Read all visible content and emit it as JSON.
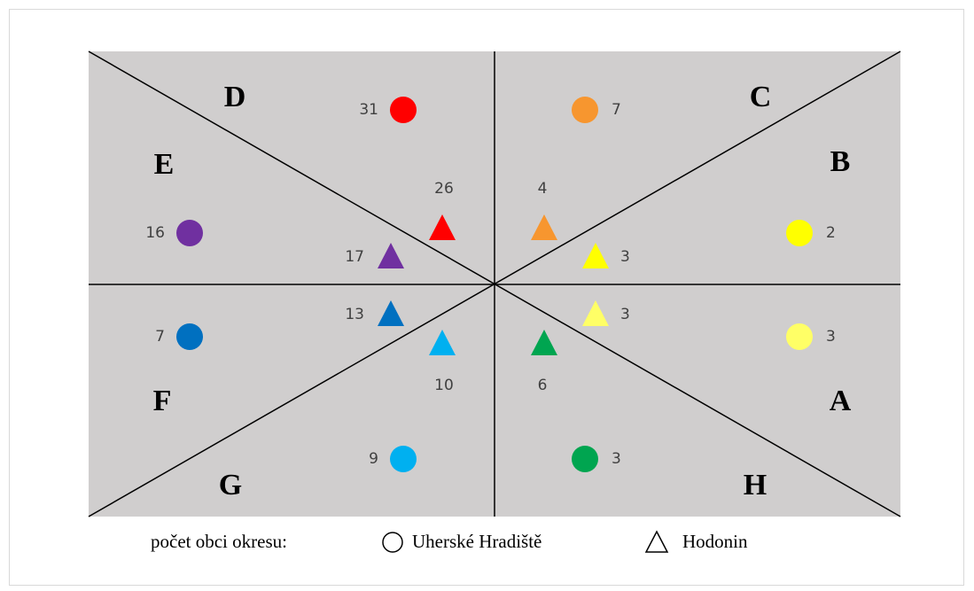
{
  "sectors": [
    "D",
    "C",
    "E",
    "B",
    "F",
    "A",
    "G",
    "H"
  ],
  "markers": [
    {
      "shape": "circle",
      "color": "#ff0000",
      "value": 31
    },
    {
      "shape": "circle",
      "color": "#f7962f",
      "value": 7
    },
    {
      "shape": "circle",
      "color": "#7030a0",
      "value": 16
    },
    {
      "shape": "circle",
      "color": "#ffff00",
      "value": 2
    },
    {
      "shape": "circle",
      "color": "#0070c0",
      "value": 7
    },
    {
      "shape": "circle",
      "color": "#ffff66",
      "value": 3
    },
    {
      "shape": "circle",
      "color": "#00b0f0",
      "value": 9
    },
    {
      "shape": "circle",
      "color": "#00a550",
      "value": 3
    },
    {
      "shape": "triangle",
      "color": "#ff0000",
      "value": 26
    },
    {
      "shape": "triangle",
      "color": "#f7962f",
      "value": 4
    },
    {
      "shape": "triangle",
      "color": "#7030a0",
      "value": 17
    },
    {
      "shape": "triangle",
      "color": "#ffff00",
      "value": 3
    },
    {
      "shape": "triangle",
      "color": "#0070c0",
      "value": 13
    },
    {
      "shape": "triangle",
      "color": "#ffff66",
      "value": 3
    },
    {
      "shape": "triangle",
      "color": "#00b0f0",
      "value": 10
    },
    {
      "shape": "triangle",
      "color": "#00a550",
      "value": 6
    }
  ],
  "legend": {
    "title": "počet obci okresu:",
    "circle": "Uherské Hradiště",
    "triangle": "Hodonin"
  }
}
